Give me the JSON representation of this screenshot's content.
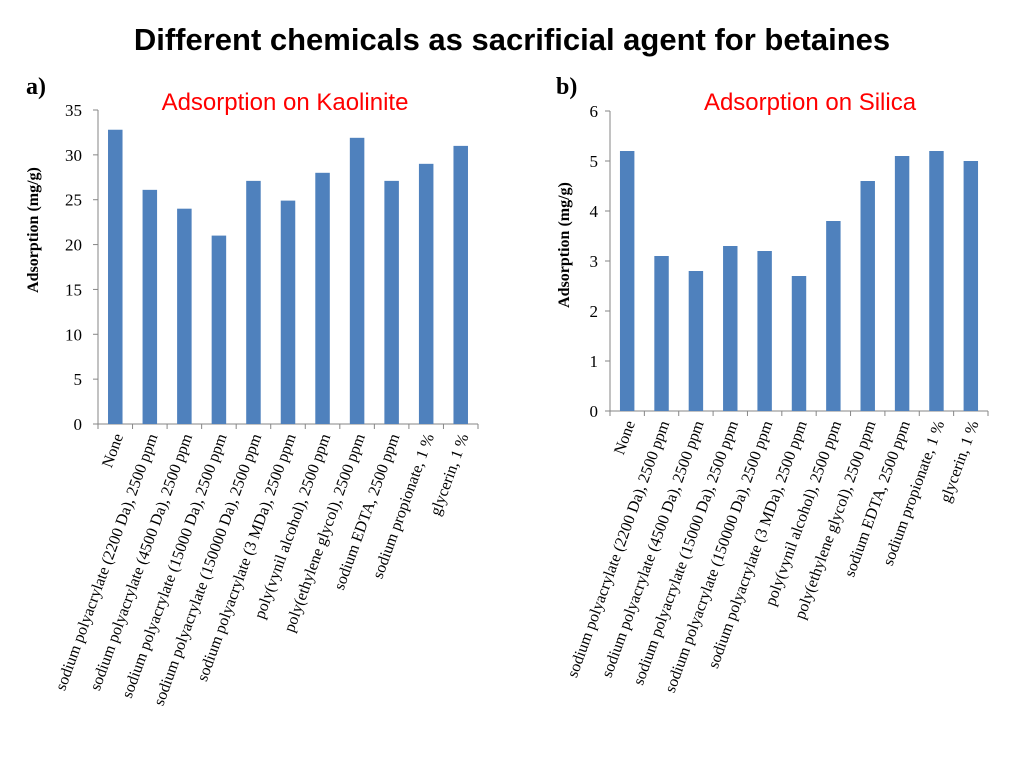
{
  "slide": {
    "title": "Different chemicals as sacrificial agent for betaines",
    "panel_a": "a)",
    "panel_b": "b)"
  },
  "colors": {
    "bar": "#4f81bd",
    "chart_title": "#ff0000"
  },
  "chart_data": [
    {
      "type": "bar",
      "title": "Adsorption on Kaolinite",
      "xlabel": "",
      "ylabel": "Adsorption (mg/g)",
      "ylim": [
        0,
        35
      ],
      "yticks": [
        0,
        5,
        10,
        15,
        20,
        25,
        30,
        35
      ],
      "categories": [
        "None",
        "sodium polyacrylate (2200 Da), 2500 ppm",
        "sodium polyacrylate (4500 Da), 2500 ppm",
        "sodium polyacrylate (15000 Da), 2500 ppm",
        "sodium polyacrylate (150000 Da), 2500 ppm",
        "sodium polyacrylate (3 MDa), 2500 ppm",
        "poly(vynil alcohol), 2500 ppm",
        "poly(ethylene glycol), 2500 ppm",
        "sodium EDTA, 2500 ppm",
        "sodium propionate, 1 %",
        "glycerin, 1 %"
      ],
      "values": [
        32.8,
        26.1,
        24.0,
        21.0,
        27.1,
        24.9,
        28.0,
        31.9,
        27.1,
        29.0,
        31.0
      ],
      "grid": false
    },
    {
      "type": "bar",
      "title": "Adsorption on Silica",
      "xlabel": "",
      "ylabel": "Adsorption (mg/g)",
      "ylim": [
        0,
        6
      ],
      "yticks": [
        0,
        1,
        2,
        3,
        4,
        5,
        6
      ],
      "categories": [
        "None",
        "sodium polyacrylate (2200 Da), 2500 ppm",
        "sodium polyacrylate (4500 Da), 2500 ppm",
        "sodium polyacrylate (15000 Da), 2500 ppm",
        "sodium polyacrylate (150000 Da), 2500 ppm",
        "sodium polyacrylate (3 MDa), 2500 ppm",
        "poly(vynil alcohol), 2500 ppm",
        "poly(ethylene glycol), 2500 ppm",
        "sodium EDTA, 2500 ppm",
        "sodium propionate, 1 %",
        "glycerin, 1 %"
      ],
      "values": [
        5.2,
        3.1,
        2.8,
        3.3,
        3.2,
        2.7,
        3.8,
        4.6,
        5.1,
        5.2,
        5.0
      ],
      "grid": false
    }
  ]
}
